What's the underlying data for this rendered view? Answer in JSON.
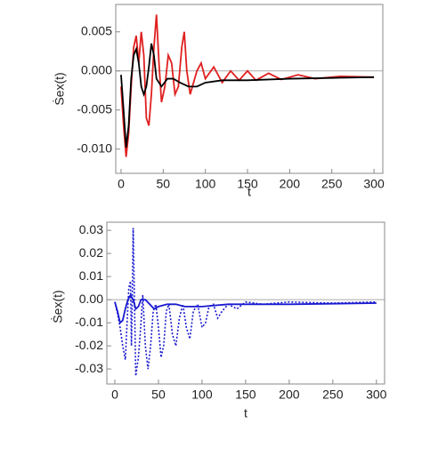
{
  "chart_data": [
    {
      "type": "line",
      "xlabel": "t",
      "ylabel": "Ṡex(t)",
      "xlim": [
        -6.3,
        310.5
      ],
      "ylim": [
        -0.0131,
        0.0085
      ],
      "xticks": [
        0,
        50,
        100,
        150,
        200,
        250,
        300
      ],
      "yticks": [
        0.005,
        {
          "value": 0,
          "label": "0.000"
        },
        -0.005,
        {
          "value": -0.01,
          "label": "-0.010"
        }
      ],
      "series": [
        {
          "color": "#e02020",
          "style": "solid",
          "x": [
            0,
            3,
            6,
            9,
            12,
            15,
            18,
            21,
            24,
            27,
            30,
            33,
            36,
            39,
            42,
            45,
            48,
            52,
            56,
            60,
            64,
            68,
            72,
            75,
            78,
            82,
            90,
            95,
            100,
            110,
            120,
            130,
            140,
            150,
            160,
            175,
            190,
            210,
            230,
            260,
            300
          ],
          "values": [
            -0.002,
            -0.007,
            -0.011,
            -0.008,
            -0.002,
            0.003,
            0.0045,
            0.001,
            0.005,
            0.002,
            -0.006,
            -0.007,
            -0.003,
            0.003,
            0.0072,
            0.001,
            -0.004,
            -0.002,
            0.002,
            0.001,
            -0.003,
            -0.002,
            0.003,
            0.005,
            0,
            -0.003,
            0,
            0.001,
            -0.001,
            0.0005,
            -0.0015,
            0,
            -0.0012,
            0,
            -0.0012,
            -0.0003,
            -0.0011,
            -0.0005,
            -0.001,
            -0.0007,
            -0.0008
          ]
        },
        {
          "color": "#000000",
          "style": "solid",
          "x": [
            0,
            3,
            6,
            9,
            12,
            15,
            18,
            21,
            24,
            27,
            30,
            33,
            36,
            39,
            42,
            48,
            55,
            62,
            70,
            80,
            90,
            100,
            120,
            150,
            200,
            250,
            300
          ],
          "values": [
            -0.0005,
            -0.005,
            -0.0098,
            -0.007,
            -0.001,
            0.002,
            0.0028,
            0.001,
            -0.002,
            -0.003,
            -0.002,
            0.0005,
            0.0035,
            0.002,
            -0.001,
            -0.002,
            -0.001,
            -0.001,
            -0.0015,
            -0.002,
            -0.002,
            -0.0015,
            -0.0012,
            -0.0012,
            -0.001,
            -0.0009,
            -0.0008
          ]
        }
      ]
    },
    {
      "type": "line",
      "xlabel": "t",
      "ylabel": "Ṡex(t)",
      "xlim": [
        -9.2,
        309.4
      ],
      "ylim": [
        -0.0365,
        0.0335
      ],
      "xticks": [
        0,
        50,
        100,
        150,
        200,
        250,
        300
      ],
      "yticks": [
        0.03,
        0.02,
        0.01,
        {
          "value": 0,
          "label": "0.00"
        },
        -0.01,
        -0.02,
        -0.03
      ],
      "series": [
        {
          "color": "#1a1ad0",
          "style": "solid",
          "x": [
            0,
            3,
            6,
            9,
            12,
            15,
            18,
            21,
            24,
            27,
            30,
            35,
            40,
            45,
            50,
            60,
            70,
            80,
            100,
            130,
            160,
            200,
            300
          ],
          "values": [
            -0.001,
            -0.005,
            -0.01,
            -0.009,
            -0.004,
            0,
            0.002,
            0,
            -0.004,
            -0.003,
            0,
            0,
            -0.002,
            -0.004,
            -0.003,
            -0.002,
            -0.002,
            -0.003,
            -0.003,
            -0.002,
            -0.002,
            -0.002,
            -0.0015
          ]
        },
        {
          "color": "#1a1ad0",
          "style": "dotted",
          "x": [
            0,
            3,
            6,
            9,
            12,
            14,
            16,
            18,
            19,
            20,
            21,
            22,
            24,
            27,
            30,
            32,
            35,
            38,
            41,
            44,
            47,
            50,
            53,
            56,
            59,
            62,
            66,
            70,
            74,
            78,
            82,
            86,
            90,
            95,
            100,
            104,
            108,
            113,
            118,
            123,
            130,
            140,
            150,
            170,
            200,
            250,
            300
          ],
          "values": [
            -0.001,
            -0.006,
            -0.012,
            -0.02,
            -0.026,
            -0.01,
            0.005,
            0.008,
            -0.02,
            0,
            0.031,
            0.01,
            -0.033,
            -0.025,
            -0.01,
            0.002,
            -0.02,
            -0.03,
            -0.02,
            -0.005,
            -0.002,
            -0.012,
            -0.025,
            -0.02,
            -0.005,
            -0.002,
            -0.015,
            -0.02,
            -0.008,
            -0.002,
            -0.012,
            -0.017,
            -0.005,
            -0.002,
            -0.012,
            -0.01,
            -0.003,
            -0.002,
            -0.008,
            -0.005,
            -0.002,
            -0.004,
            -0.001,
            -0.002,
            -0.001,
            -0.0015,
            -0.001
          ]
        }
      ]
    }
  ]
}
